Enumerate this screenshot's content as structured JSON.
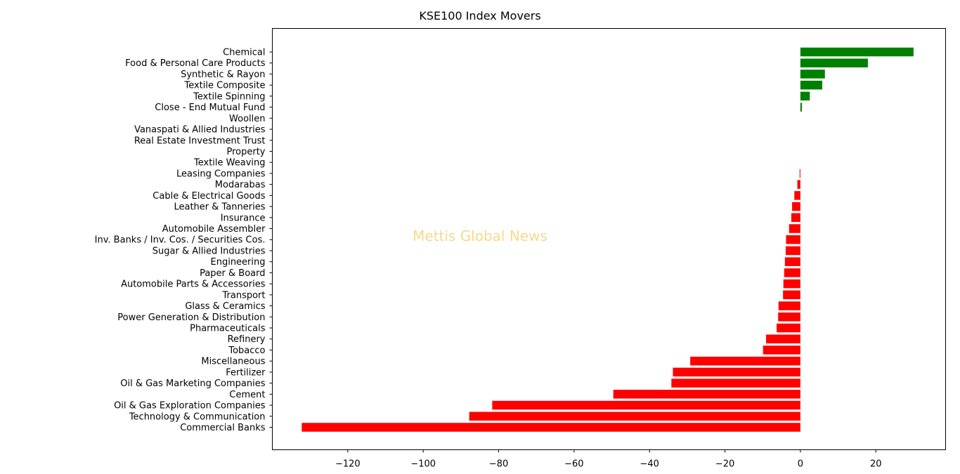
{
  "chart_data": {
    "type": "bar",
    "orientation": "horizontal",
    "title": "KSE100 Index Movers",
    "watermark": "Mettis Global News",
    "xlabel": "",
    "ylabel": "",
    "xlim": [
      -140,
      38.5
    ],
    "xticks": [
      -120,
      -100,
      -80,
      -60,
      -40,
      -20,
      0,
      20
    ],
    "xtick_labels": [
      "−120",
      "−100",
      "−80",
      "−60",
      "−40",
      "−20",
      "0",
      "20"
    ],
    "positive_color": "#008000",
    "negative_color": "#ff0000",
    "grid": false,
    "categories": [
      "Chemical",
      "Food & Personal Care Products",
      "Synthetic & Rayon",
      "Textile Composite",
      "Textile Spinning",
      "Close - End Mutual Fund",
      "Woollen",
      "Vanaspati & Allied Industries",
      "Real Estate Investment Trust",
      "Property",
      "Textile Weaving",
      "Leasing Companies",
      "Modarabas",
      "Cable & Electrical Goods",
      "Leather & Tanneries",
      "Insurance",
      "Automobile Assembler",
      "Inv. Banks / Inv. Cos. / Securities Cos.",
      "Sugar & Allied Industries",
      "Engineering",
      "Paper & Board",
      "Automobile Parts & Accessories",
      "Transport",
      "Glass & Ceramics",
      "Power Generation & Distribution",
      "Pharmaceuticals",
      "Refinery",
      "Tobacco",
      "Miscellaneous",
      "Fertilizer",
      "Oil & Gas Marketing Companies",
      "Cement",
      "Oil & Gas Exploration Companies",
      "Technology & Communication",
      "Commercial Banks"
    ],
    "values": [
      30.0,
      17.9,
      6.5,
      5.8,
      2.5,
      0.4,
      0,
      0,
      0,
      0,
      0,
      -0.2,
      -0.8,
      -1.6,
      -2.2,
      -2.4,
      -3.0,
      -3.8,
      -3.9,
      -4.1,
      -4.3,
      -4.5,
      -4.6,
      -5.8,
      -5.9,
      -6.3,
      -9.1,
      -9.9,
      -29.2,
      -33.8,
      -34.2,
      -49.6,
      -81.7,
      -87.8,
      -132.2
    ]
  }
}
